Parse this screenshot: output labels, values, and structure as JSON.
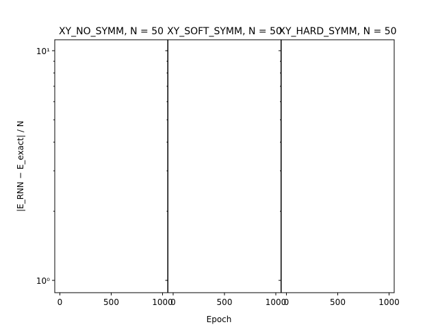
{
  "chart_data": [
    {
      "type": "line",
      "title": "XY_NO_SYMM, N = 50",
      "ylabel": "|E_RNN − E_exact| / N",
      "xlim": [
        -50,
        1050
      ],
      "xticks": [
        0,
        500,
        1000
      ],
      "ylim": [
        0.884,
        11.16
      ],
      "yscale": "log",
      "yticks": [
        {
          "value": 1,
          "label": "10⁰"
        },
        {
          "value": 10,
          "label": "10¹"
        }
      ],
      "yminorticks": [
        2,
        3,
        4,
        5,
        6,
        7,
        8,
        9
      ]
    },
    {
      "type": "line",
      "title": "XY_SOFT_SYMM, N = 50",
      "xlabel": "Epoch",
      "xlim": [
        -50,
        1050
      ],
      "xticks": [
        0,
        500,
        1000
      ],
      "ylim": [
        0.884,
        11.16
      ],
      "yscale": "log",
      "yticks": [
        {
          "value": 1,
          "label": "10⁰"
        },
        {
          "value": 10,
          "label": "10¹"
        }
      ],
      "yminorticks": [
        2,
        3,
        4,
        5,
        6,
        7,
        8,
        9
      ]
    },
    {
      "type": "line",
      "title": "XY_HARD_SYMM, N = 50",
      "xlim": [
        -50,
        1050
      ],
      "xticks": [
        0,
        500,
        1000
      ],
      "ylim": [
        0.884,
        11.16
      ],
      "yscale": "log",
      "yticks": [
        {
          "value": 1,
          "label": "10⁰"
        },
        {
          "value": 10,
          "label": "10¹"
        }
      ],
      "yminorticks": [
        2,
        3,
        4,
        5,
        6,
        7,
        8,
        9
      ]
    }
  ]
}
